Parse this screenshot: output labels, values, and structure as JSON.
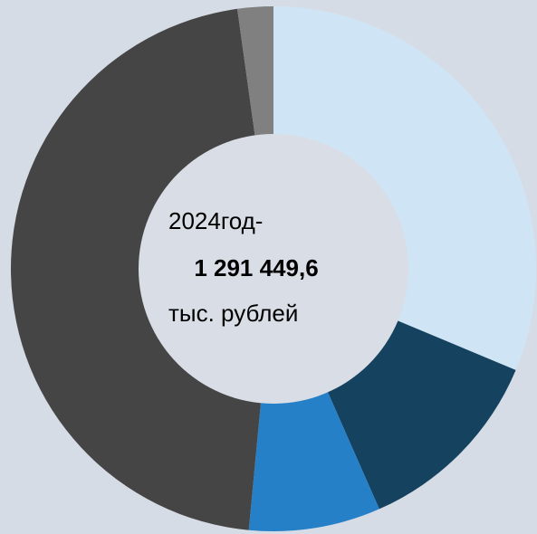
{
  "chart_data": {
    "type": "donut",
    "values": [
      31.3,
      12.1,
      8.1,
      46.3,
      2.2
    ],
    "colors": [
      "#cfe5f5",
      "#15425f",
      "#2680c8",
      "#454545",
      "#808080"
    ],
    "center_text": [
      "2024год-",
      "1 291 449,6",
      "тыс. рублей"
    ]
  }
}
